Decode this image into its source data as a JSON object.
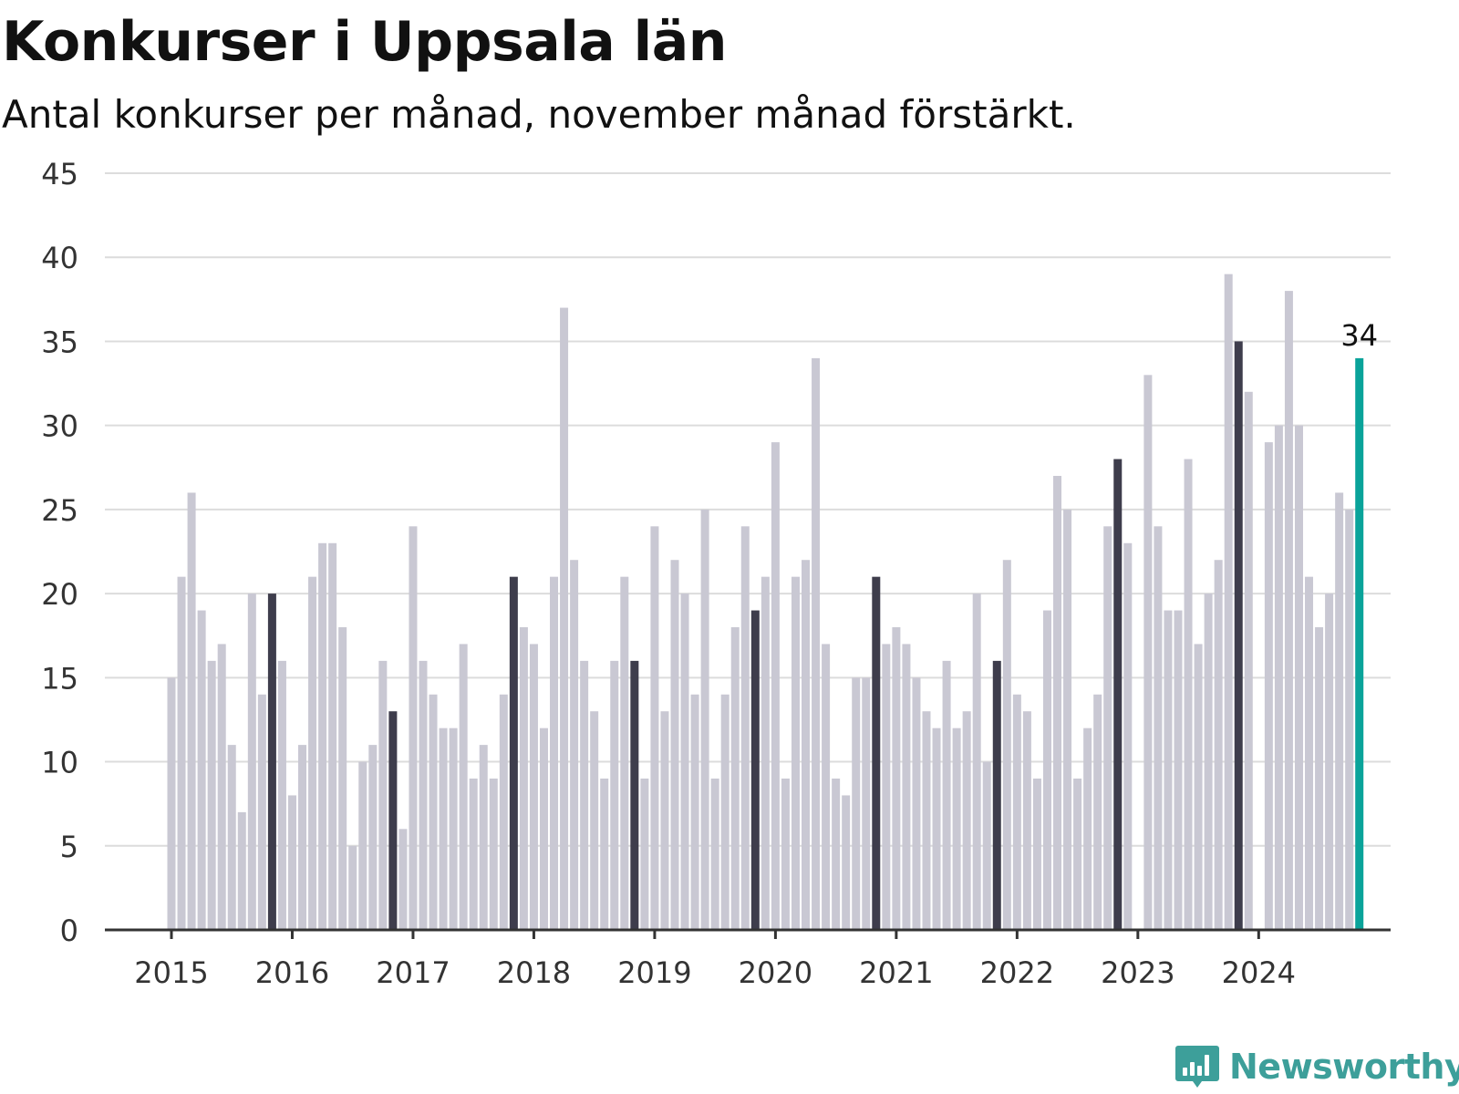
{
  "header": {
    "title": "Konkurser i Uppsala län",
    "subtitle": "Antal konkurser per månad, november månad förstärkt."
  },
  "branding": {
    "name": "Newsworthy",
    "logo_icon": "bar-chart-speech-bubble-icon",
    "color": "#3d9f9a"
  },
  "colors": {
    "regular": "#c9c8d3",
    "november": "#3e3d4c",
    "latest": "#0aa39a",
    "grid": "#dcdcdc",
    "axis": "#333333"
  },
  "chart_data": {
    "type": "bar",
    "title": "Konkurser i Uppsala län",
    "subtitle": "Antal konkurser per månad, november månad förstärkt.",
    "xlabel": "",
    "ylabel": "",
    "ylim": [
      0,
      45
    ],
    "yticks": [
      "0",
      "5",
      "10",
      "15",
      "20",
      "25",
      "30",
      "35",
      "40",
      "45"
    ],
    "x_tick_labels": [
      "2015",
      "2016",
      "2017",
      "2018",
      "2019",
      "2020",
      "2021",
      "2022",
      "2023",
      "2024"
    ],
    "grid": true,
    "start": "2015-01",
    "end": "2024-11",
    "highlight": "november",
    "annotation": {
      "label": "34",
      "month": "2024-11"
    },
    "series": [
      {
        "values": [
          15,
          21,
          26,
          19,
          16,
          17,
          11,
          7,
          20,
          14,
          20,
          16,
          8,
          11,
          21,
          23,
          23,
          18,
          5,
          10,
          11,
          16,
          13,
          6,
          24,
          16,
          14,
          12,
          12,
          17,
          9,
          11,
          9,
          14,
          21,
          18,
          17,
          12,
          21,
          37,
          22,
          16,
          13,
          9,
          16,
          21,
          16,
          9,
          24,
          13,
          22,
          20,
          14,
          25,
          9,
          14,
          18,
          24,
          19,
          21,
          29,
          9,
          21,
          22,
          34,
          17,
          9,
          8,
          15,
          15,
          21,
          17,
          18,
          17,
          15,
          13,
          12,
          16,
          12,
          13,
          20,
          10,
          16,
          22,
          14,
          13,
          9,
          19,
          27,
          25,
          9,
          12,
          14,
          24,
          28,
          23,
          0,
          33,
          24,
          19,
          19,
          28,
          17,
          20,
          22,
          39,
          35,
          32,
          0,
          29,
          30,
          38,
          30,
          21,
          18,
          20,
          26,
          25,
          34
        ]
      }
    ]
  }
}
